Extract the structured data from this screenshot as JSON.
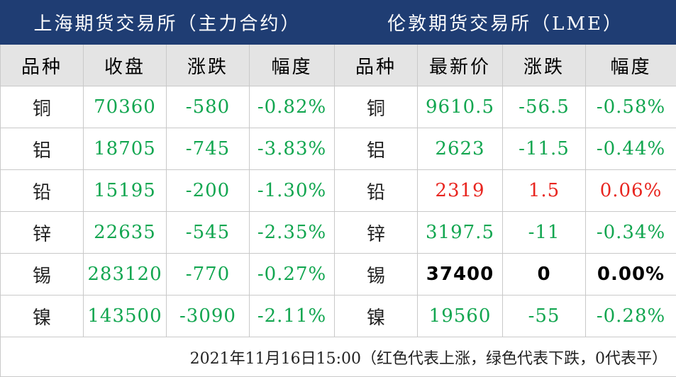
{
  "titles": {
    "shfe": "上海期货交易所（主力合约）",
    "lme": "伦敦期货交易所（LME）"
  },
  "headers": {
    "shfe": [
      "品种",
      "收盘",
      "涨跌",
      "幅度"
    ],
    "lme": [
      "品种",
      "最新价",
      "涨跌",
      "幅度"
    ]
  },
  "rows": [
    {
      "shfe": {
        "name": "铜",
        "close": "70360",
        "change": "-580",
        "pct": "-0.82%"
      },
      "lme": {
        "name": "铜",
        "price": "9610.5",
        "change": "-56.5",
        "pct": "-0.58%"
      }
    },
    {
      "shfe": {
        "name": "铝",
        "close": "18705",
        "change": "-745",
        "pct": "-3.83%"
      },
      "lme": {
        "name": "铝",
        "price": "2623",
        "change": "-11.5",
        "pct": "-0.44%"
      }
    },
    {
      "shfe": {
        "name": "铅",
        "close": "15195",
        "change": "-200",
        "pct": "-1.30%"
      },
      "lme": {
        "name": "铅",
        "price": "2319",
        "change": "1.5",
        "pct": "0.06%"
      }
    },
    {
      "shfe": {
        "name": "锌",
        "close": "22635",
        "change": "-545",
        "pct": "-2.35%"
      },
      "lme": {
        "name": "锌",
        "price": "3197.5",
        "change": "-11",
        "pct": "-0.34%"
      }
    },
    {
      "shfe": {
        "name": "锡",
        "close": "283120",
        "change": "-770",
        "pct": "-0.27%"
      },
      "lme": {
        "name": "锡",
        "price": "37400",
        "change": "0",
        "pct": "0.00%"
      }
    },
    {
      "shfe": {
        "name": "镍",
        "close": "143500",
        "change": "-3090",
        "pct": "-2.11%"
      },
      "lme": {
        "name": "镍",
        "price": "19560",
        "change": "-55",
        "pct": "-0.28%"
      }
    }
  ],
  "colors": {
    "header_bg": "#1f3d73",
    "up": "#e8251f",
    "down": "#12a650",
    "flat": "#000000"
  },
  "footnote": "2021年11月16日15:00（红色代表上涨，绿色代表下跌，0代表平）"
}
